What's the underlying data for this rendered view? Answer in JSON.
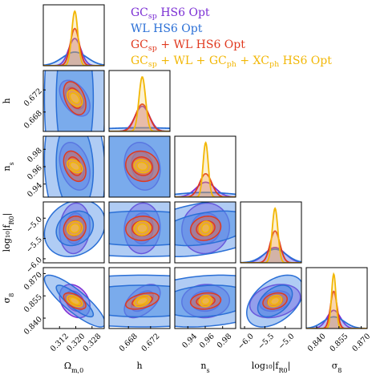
{
  "chart_data": {
    "type": "scatter",
    "subtype": "corner-plot",
    "parameters": [
      {
        "key": "om",
        "label": "Ω_m,0",
        "label_main": "Ω",
        "label_sub": "m,0",
        "range": [
          0.304,
          0.334
        ],
        "ticks": [
          0.312,
          0.32,
          0.328
        ],
        "tick_labels": [
          "0.312",
          "0.320",
          "0.328"
        ]
      },
      {
        "key": "h",
        "label": "h",
        "label_main": "h",
        "label_sub": "",
        "range": [
          0.6645,
          0.6755
        ],
        "ticks": [
          0.668,
          0.672
        ],
        "tick_labels": [
          "0.668",
          "0.672"
        ]
      },
      {
        "key": "ns",
        "label": "n_s",
        "label_main": "n",
        "label_sub": "s",
        "range": [
          0.925,
          0.995
        ],
        "ticks": [
          0.94,
          0.96,
          0.98
        ],
        "tick_labels": [
          "0.94",
          "0.96",
          "0.98"
        ]
      },
      {
        "key": "fr0",
        "label": "log10|f_R0|",
        "label_main": "log₁₀|f",
        "label_sub": "R0",
        "label_end": "|",
        "range": [
          -6.1,
          -4.6
        ],
        "ticks": [
          -6.0,
          -5.5,
          -5.0
        ],
        "tick_labels": [
          "−6.0",
          "−5.5",
          "−5.0"
        ]
      },
      {
        "key": "s8",
        "label": "σ8",
        "label_main": "σ",
        "label_sub": "8",
        "range": [
          0.833,
          0.874
        ],
        "ticks": [
          0.84,
          0.855,
          0.87
        ],
        "tick_labels": [
          "0.840",
          "0.855",
          "0.870"
        ]
      }
    ],
    "fiducial": {
      "om": 0.3195,
      "h": 0.6705,
      "ns": 0.9605,
      "fr0": -5.25,
      "s8": 0.8515
    },
    "series": [
      {
        "name": "GC_sp HS6 Opt",
        "color": "#7b2fd4",
        "fill": "#8b45e0",
        "sigma": {
          "om": 0.003,
          "h": 0.0013,
          "ns": 0.011,
          "fr0": 0.25,
          "s8": 0.0045
        },
        "correlations": {
          "om-h": -0.45,
          "om-ns": -0.3,
          "om-fr0": 0.1,
          "om-s8": -0.3,
          "h-ns": -0.15,
          "h-fr0": 0.05,
          "h-s8": 0.5,
          "ns-fr0": 0.05,
          "ns-s8": 0.05,
          "fr0-s8": 0.25
        }
      },
      {
        "name": "WL HS6 Opt",
        "color": "#2a6fd6",
        "fill": "#4f8fe6",
        "sigma": {
          "om": 0.006,
          "h": 0.009,
          "ns": 0.035,
          "fr0": 0.28,
          "s8": 0.007
        },
        "correlations": {
          "om-h": 0.0,
          "om-ns": -0.1,
          "om-fr0": 0.2,
          "om-s8": -0.85,
          "h-ns": 0.0,
          "h-fr0": 0.0,
          "h-s8": 0.0,
          "ns-fr0": 0.4,
          "ns-s8": 0.2,
          "fr0-s8": 0.45
        }
      },
      {
        "name": "GC_sp + WL HS6 Opt",
        "color": "#e0391f",
        "fill": "#f07040",
        "sigma": {
          "om": 0.0022,
          "h": 0.0012,
          "ns": 0.007,
          "fr0": 0.12,
          "s8": 0.0022
        },
        "correlations": {
          "om-h": -0.4,
          "om-ns": -0.35,
          "om-fr0": 0.1,
          "om-s8": -0.55,
          "h-ns": -0.1,
          "h-fr0": 0.05,
          "h-s8": 0.45,
          "ns-fr0": 0.15,
          "ns-s8": 0.15,
          "fr0-s8": 0.25
        }
      },
      {
        "name": "GC_sp + WL + GC_ph + XC_ph HS6 Opt",
        "color": "#f2b705",
        "fill": "#f5c84a",
        "sigma": {
          "om": 0.0015,
          "h": 0.0006,
          "ns": 0.003,
          "fr0": 0.07,
          "s8": 0.0015
        },
        "correlations": {
          "om-h": -0.4,
          "om-ns": -0.4,
          "om-fr0": 0.1,
          "om-s8": -0.5,
          "h-ns": -0.15,
          "h-fr0": 0.05,
          "h-s8": 0.4,
          "ns-fr0": 0.1,
          "ns-s8": 0.1,
          "fr0-s8": 0.25
        }
      }
    ],
    "legend": {
      "position": "top-right",
      "entries": [
        {
          "parts": [
            {
              "t": "GC",
              "s": false
            },
            {
              "t": "sp",
              "s": true
            },
            {
              "t": " HS6 Opt",
              "s": false
            }
          ]
        },
        {
          "parts": [
            {
              "t": "WL HS6 Opt",
              "s": false
            }
          ]
        },
        {
          "parts": [
            {
              "t": "GC",
              "s": false
            },
            {
              "t": "sp",
              "s": true
            },
            {
              "t": " + WL HS6 Opt",
              "s": false
            }
          ]
        },
        {
          "parts": [
            {
              "t": "GC",
              "s": false
            },
            {
              "t": "sp",
              "s": true
            },
            {
              "t": " + WL + GC",
              "s": false
            },
            {
              "t": "ph",
              "s": true
            },
            {
              "t": " + XC",
              "s": false
            },
            {
              "t": "ph",
              "s": true
            },
            {
              "t": " HS6 Opt",
              "s": false
            }
          ]
        }
      ]
    },
    "contour_levels": [
      "68%",
      "95%"
    ],
    "grid": false
  }
}
